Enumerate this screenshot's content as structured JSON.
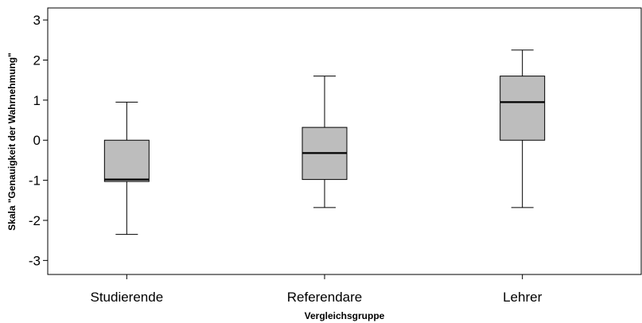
{
  "chart_data": {
    "type": "box",
    "xlabel": "Vergleichsgruppe",
    "ylabel": "Skala \"Genauigkeit der Wahrnehmung\"",
    "ylim": [
      -3.35,
      3.3
    ],
    "yticks": [
      3,
      2,
      1,
      0,
      -1,
      -2,
      -3
    ],
    "box_color": "#bdbdbd",
    "categories": [
      "Studierende",
      "Referendare",
      "Lehrer"
    ],
    "boxes": [
      {
        "category": "Studierende",
        "whisker_low": -2.35,
        "q1": -1.03,
        "median": -0.98,
        "q3": 0.0,
        "whisker_high": 0.95
      },
      {
        "category": "Referendare",
        "whisker_low": -1.68,
        "q1": -0.98,
        "median": -0.32,
        "q3": 0.32,
        "whisker_high": 1.6
      },
      {
        "category": "Lehrer",
        "whisker_low": -1.68,
        "q1": 0.0,
        "median": 0.95,
        "q3": 1.6,
        "whisker_high": 2.25
      }
    ]
  }
}
